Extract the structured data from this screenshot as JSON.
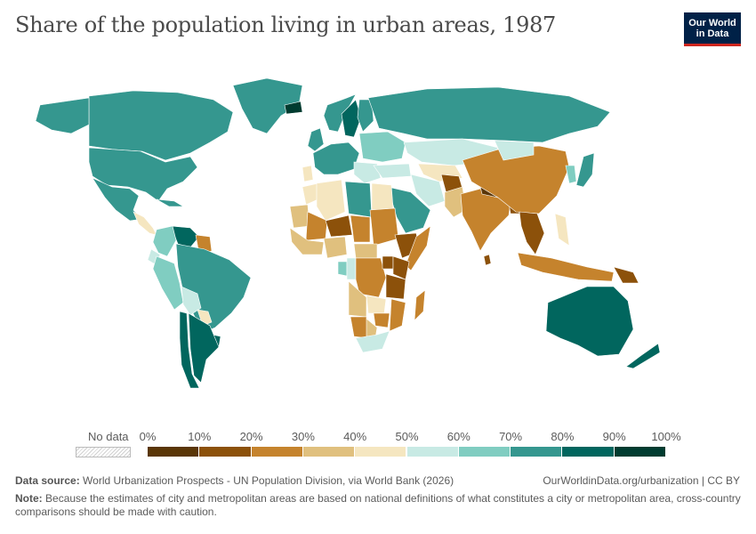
{
  "header": {
    "title": "Share of the population living in urban areas, 1987",
    "logo_line1": "Our World",
    "logo_line2": "in Data"
  },
  "legend": {
    "no_data_label": "No data",
    "ticks": [
      "0%",
      "10%",
      "20%",
      "30%",
      "40%",
      "50%",
      "60%",
      "70%",
      "80%",
      "90%",
      "100%"
    ],
    "colors": [
      "#5a3607",
      "#8c510a",
      "#c5832d",
      "#e0c07e",
      "#f5e6c0",
      "#c8eae4",
      "#80cdc1",
      "#35978f",
      "#01665e",
      "#003c30"
    ]
  },
  "footer": {
    "source_label": "Data source:",
    "source_text": "World Urbanization Prospects - UN Population Division, via World Bank (2026)",
    "url_text": "OurWorldinData.org/urbanization | CC BY",
    "note_label": "Note:",
    "note_text": "Because the estimates of city and metropolitan areas are based on national definitions of what constitutes a city or metropolitan area, cross-country comparisons should be made with caution."
  },
  "map_data": {
    "type": "choropleth",
    "metric": "urban population share (%)",
    "regions": [
      {
        "name": "Canada",
        "value": 76
      },
      {
        "name": "Alaska",
        "value": 72
      },
      {
        "name": "Greenland",
        "value": 79
      },
      {
        "name": "United States",
        "value": 75
      },
      {
        "name": "Mexico",
        "value": 71
      },
      {
        "name": "Central America",
        "value": 45
      },
      {
        "name": "Cuba",
        "value": 72
      },
      {
        "name": "Venezuela",
        "value": 83
      },
      {
        "name": "Guyana",
        "value": 29
      },
      {
        "name": "Colombia",
        "value": 68
      },
      {
        "name": "Ecuador",
        "value": 54
      },
      {
        "name": "Peru",
        "value": 68
      },
      {
        "name": "Brazil",
        "value": 73
      },
      {
        "name": "Bolivia",
        "value": 54
      },
      {
        "name": "Paraguay",
        "value": 47
      },
      {
        "name": "Uruguay",
        "value": 88
      },
      {
        "name": "Chile",
        "value": 83
      },
      {
        "name": "Argentina",
        "value": 86
      },
      {
        "name": "Iceland",
        "value": 90
      },
      {
        "name": "Norway",
        "value": 72
      },
      {
        "name": "Sweden",
        "value": 83
      },
      {
        "name": "Finland",
        "value": 79
      },
      {
        "name": "United Kingdom",
        "value": 78
      },
      {
        "name": "Western Europe",
        "value": 74
      },
      {
        "name": "Eastern Europe",
        "value": 61
      },
      {
        "name": "Portugal",
        "value": 47
      },
      {
        "name": "Balkans",
        "value": 52
      },
      {
        "name": "Russia",
        "value": 72
      },
      {
        "name": "Kazakhstan",
        "value": 57
      },
      {
        "name": "Central Asia",
        "value": 40
      },
      {
        "name": "Turkey",
        "value": 57
      },
      {
        "name": "Iran",
        "value": 55
      },
      {
        "name": "Arabian Peninsula",
        "value": 74
      },
      {
        "name": "Afghanistan",
        "value": 18
      },
      {
        "name": "Pakistan",
        "value": 30
      },
      {
        "name": "India",
        "value": 25
      },
      {
        "name": "Nepal",
        "value": 8
      },
      {
        "name": "Bangladesh",
        "value": 18
      },
      {
        "name": "Sri Lanka",
        "value": 19
      },
      {
        "name": "China",
        "value": 24
      },
      {
        "name": "Mongolia",
        "value": 57
      },
      {
        "name": "Korea",
        "value": 69
      },
      {
        "name": "Japan",
        "value": 77
      },
      {
        "name": "Mainland Southeast Asia",
        "value": 19
      },
      {
        "name": "Philippines",
        "value": 46
      },
      {
        "name": "Indonesia",
        "value": 27
      },
      {
        "name": "Papua New Guinea",
        "value": 14
      },
      {
        "name": "Australia",
        "value": 85
      },
      {
        "name": "New Zealand",
        "value": 85
      },
      {
        "name": "Morocco",
        "value": 48
      },
      {
        "name": "Algeria",
        "value": 48
      },
      {
        "name": "Libya",
        "value": 76
      },
      {
        "name": "Egypt",
        "value": 43
      },
      {
        "name": "Mauritania",
        "value": 38
      },
      {
        "name": "Mali",
        "value": 22
      },
      {
        "name": "Niger",
        "value": 15
      },
      {
        "name": "Chad",
        "value": 20
      },
      {
        "name": "Sudan",
        "value": 26
      },
      {
        "name": "Ethiopia",
        "value": 12
      },
      {
        "name": "Somalia",
        "value": 28
      },
      {
        "name": "West Africa",
        "value": 30
      },
      {
        "name": "Nigeria",
        "value": 31
      },
      {
        "name": "Central African Republic",
        "value": 36
      },
      {
        "name": "Gabon",
        "value": 65
      },
      {
        "name": "Congo",
        "value": 53
      },
      {
        "name": "DR Congo",
        "value": 27
      },
      {
        "name": "Uganda",
        "value": 11
      },
      {
        "name": "Kenya",
        "value": 17
      },
      {
        "name": "Tanzania",
        "value": 19
      },
      {
        "name": "Angola",
        "value": 33
      },
      {
        "name": "Zambia",
        "value": 40
      },
      {
        "name": "Mozambique",
        "value": 21
      },
      {
        "name": "Zimbabwe",
        "value": 28
      },
      {
        "name": "Namibia",
        "value": 28
      },
      {
        "name": "Botswana",
        "value": 38
      },
      {
        "name": "South Africa",
        "value": 51
      },
      {
        "name": "Madagascar",
        "value": 23
      }
    ]
  }
}
